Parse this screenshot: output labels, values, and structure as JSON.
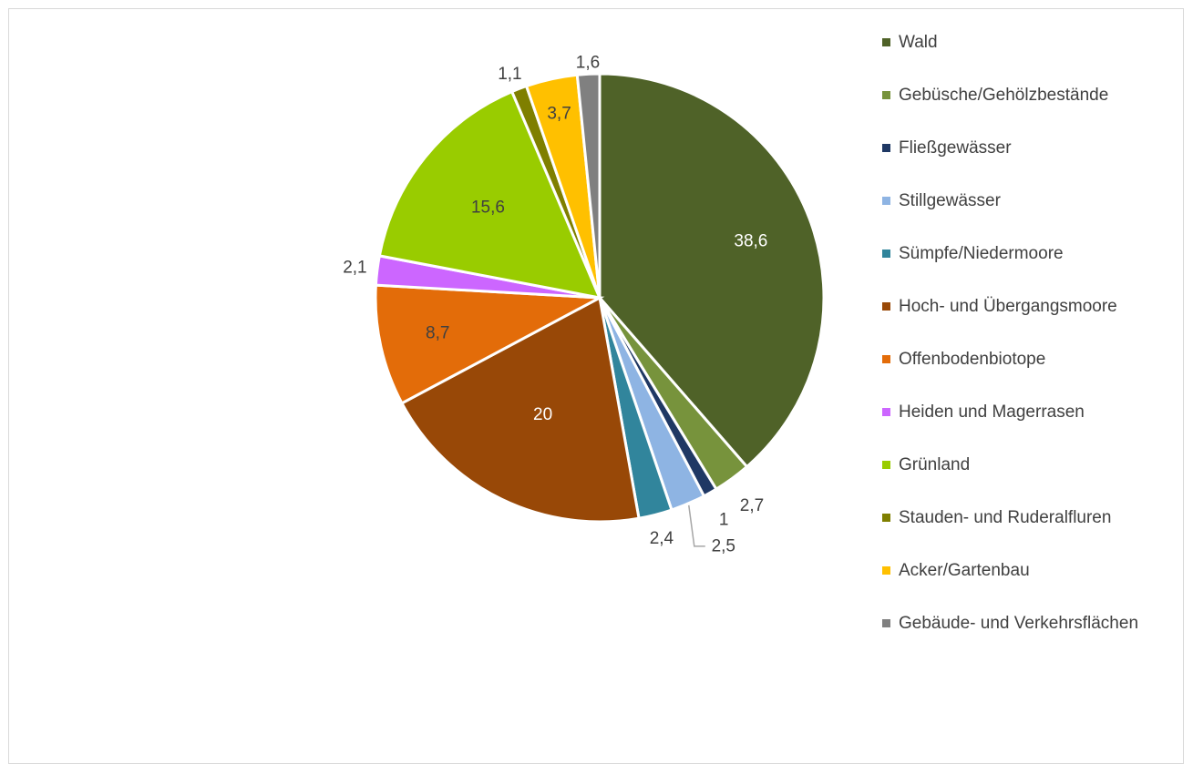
{
  "chart_data": {
    "type": "pie",
    "start_angle_deg": 0,
    "direction": "clockwise",
    "legend_position": "right",
    "slices": [
      {
        "name": "Wald",
        "value": 38.6,
        "label": "38,6",
        "color": "#4f6228",
        "label_inside": true,
        "label_color": "#ffffff"
      },
      {
        "name": "Gebüsche/Gehölzbestände",
        "value": 2.7,
        "label": "2,7",
        "color": "#77933c",
        "label_inside": false
      },
      {
        "name": "Fließgewässer",
        "value": 1,
        "label": "1",
        "color": "#1f3864",
        "label_inside": false
      },
      {
        "name": "Stillgewässer",
        "value": 2.5,
        "label": "2,5",
        "color": "#8eb4e3",
        "label_inside": false,
        "leader_line": true
      },
      {
        "name": "Sümpfe/Niedermoore",
        "value": 2.4,
        "label": "2,4",
        "color": "#31859c",
        "label_inside": false
      },
      {
        "name": "Hoch- und Übergangsmoore",
        "value": 20,
        "label": "20",
        "color": "#984807",
        "label_inside": true,
        "label_color": "#ffffff"
      },
      {
        "name": "Offenbodenbiotope",
        "value": 8.7,
        "label": "8,7",
        "color": "#e36c09",
        "label_inside": true,
        "label_color": "#404040"
      },
      {
        "name": "Heiden und Magerrasen",
        "value": 2.1,
        "label": "2,1",
        "color": "#cc66ff",
        "label_inside": false
      },
      {
        "name": "Grünland",
        "value": 15.6,
        "label": "15,6",
        "color": "#99cc00",
        "label_inside": true,
        "label_color": "#404040"
      },
      {
        "name": "Stauden- und Ruderalfluren",
        "value": 1.1,
        "label": "1,1",
        "color": "#7f7f00",
        "label_inside": false
      },
      {
        "name": "Acker/Gartenbau",
        "value": 3.7,
        "label": "3,7",
        "color": "#ffc000",
        "label_inside": true,
        "label_color": "#404040"
      },
      {
        "name": "Gebäude- und Verkehrsflächen",
        "value": 1.6,
        "label": "1,6",
        "color": "#808080",
        "label_inside": false
      }
    ]
  },
  "legend": {
    "items": [
      "Wald",
      "Gebüsche/Gehölzbestände",
      "Fließgewässer",
      "Stillgewässer",
      "Sümpfe/Niedermoore",
      "Hoch- und Übergangsmoore",
      "Offenbodenbiotope",
      "Heiden und Magerrasen",
      "Grünland",
      "Stauden- und Ruderalfluren",
      "Acker/Gartenbau",
      "Gebäude- und Verkehrsflächen"
    ]
  },
  "colors": {
    "label_text": "#404040",
    "slice_border": "#ffffff",
    "leader_line": "#a6a6a6"
  }
}
